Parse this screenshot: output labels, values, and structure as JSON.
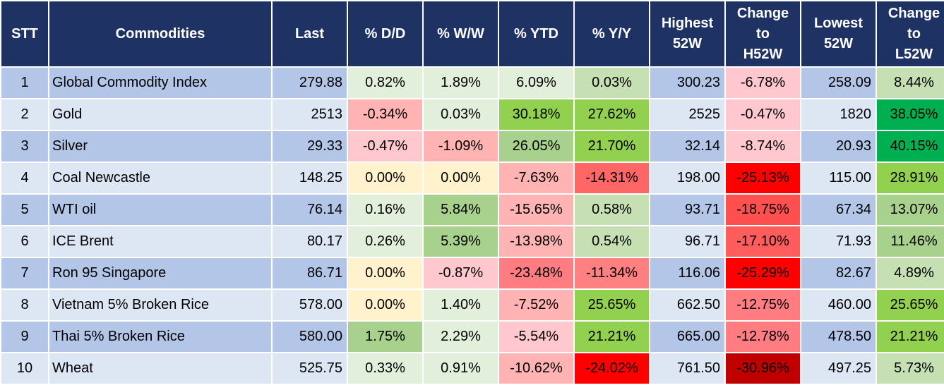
{
  "headers": [
    "STT",
    "Commodities",
    "Last",
    "% D/D",
    "% W/W",
    "% YTD",
    "% Y/Y",
    "Highest\n52W",
    "Change\nto\nH52W",
    "Lowest\n52W",
    "Change\nto\nL52W"
  ],
  "rows": [
    {
      "stt": "1",
      "name": "Global Commodity Index",
      "last": "279.88",
      "dd": "0.82%",
      "ww": "1.89%",
      "ytd": "6.09%",
      "yy": "0.03%",
      "hi": "300.23",
      "chi": "-6.78%",
      "lo": "258.09",
      "clo": "8.44%",
      "colors": {
        "dd": "#e2efda",
        "ww": "#e2efda",
        "ytd": "#e2efda",
        "yy": "#c6e0b4",
        "chi": "#ffc7ce",
        "clo": "#c6e0b4"
      }
    },
    {
      "stt": "2",
      "name": "Gold",
      "last": "2513",
      "dd": "-0.34%",
      "ww": "0.03%",
      "ytd": "30.18%",
      "yy": "27.62%",
      "hi": "2525",
      "chi": "-0.47%",
      "lo": "1820",
      "clo": "38.05%",
      "colors": {
        "dd": "#ffb3b3",
        "ww": "#e2efda",
        "ytd": "#92d050",
        "yy": "#92d050",
        "chi": "#ffc7ce",
        "clo": "#00b050"
      }
    },
    {
      "stt": "3",
      "name": "Silver",
      "last": "29.33",
      "dd": "-0.47%",
      "ww": "-1.09%",
      "ytd": "26.05%",
      "yy": "21.70%",
      "hi": "32.14",
      "chi": "-8.74%",
      "lo": "20.93",
      "clo": "40.15%",
      "colors": {
        "dd": "#ffc7ce",
        "ww": "#ffb3b3",
        "ytd": "#a9d18e",
        "yy": "#92d050",
        "chi": "#ffc7ce",
        "clo": "#00b050"
      }
    },
    {
      "stt": "4",
      "name": "Coal Newcastle",
      "last": "148.25",
      "dd": "0.00%",
      "ww": "0.00%",
      "ytd": "-7.63%",
      "yy": "-14.31%",
      "hi": "198.00",
      "chi": "-25.13%",
      "lo": "115.00",
      "clo": "28.91%",
      "colors": {
        "dd": "#fff2cc",
        "ww": "#fff2cc",
        "ytd": "#ffb3b3",
        "yy": "#ff6666",
        "chi": "#ff0000",
        "clo": "#92d050"
      }
    },
    {
      "stt": "5",
      "name": "WTI oil",
      "last": "76.14",
      "dd": "0.16%",
      "ww": "5.84%",
      "ytd": "-15.65%",
      "yy": "0.58%",
      "hi": "93.71",
      "chi": "-18.75%",
      "lo": "67.34",
      "clo": "13.07%",
      "colors": {
        "dd": "#e2efda",
        "ww": "#a9d18e",
        "ytd": "#ffb3b3",
        "yy": "#c6e0b4",
        "chi": "#ff5050",
        "clo": "#a9d18e"
      }
    },
    {
      "stt": "6",
      "name": "ICE Brent",
      "last": "80.17",
      "dd": "0.26%",
      "ww": "5.39%",
      "ytd": "-13.98%",
      "yy": "0.54%",
      "hi": "96.71",
      "chi": "-17.10%",
      "lo": "71.93",
      "clo": "11.46%",
      "colors": {
        "dd": "#e2efda",
        "ww": "#a9d18e",
        "ytd": "#ffb3b3",
        "yy": "#c6e0b4",
        "chi": "#ff5c5c",
        "clo": "#a9d18e"
      }
    },
    {
      "stt": "7",
      "name": "Ron 95 Singapore",
      "last": "86.71",
      "dd": "0.00%",
      "ww": "-0.87%",
      "ytd": "-23.48%",
      "yy": "-11.34%",
      "hi": "116.06",
      "chi": "-25.29%",
      "lo": "82.67",
      "clo": "4.89%",
      "colors": {
        "dd": "#fff2cc",
        "ww": "#ffc7ce",
        "ytd": "#ff7c80",
        "yy": "#ff8080",
        "chi": "#ff0000",
        "clo": "#c6e0b4"
      }
    },
    {
      "stt": "8",
      "name": "Vietnam 5% Broken Rice",
      "last": "578.00",
      "dd": "0.00%",
      "ww": "1.40%",
      "ytd": "-7.52%",
      "yy": "25.65%",
      "hi": "662.50",
      "chi": "-12.75%",
      "lo": "460.00",
      "clo": "25.65%",
      "colors": {
        "dd": "#fff2cc",
        "ww": "#e2efda",
        "ytd": "#ffb3b3",
        "yy": "#92d050",
        "chi": "#ff7c80",
        "clo": "#92d050"
      }
    },
    {
      "stt": "9",
      "name": "Thai 5% Broken Rice",
      "last": "580.00",
      "dd": "1.75%",
      "ww": "2.29%",
      "ytd": "-5.54%",
      "yy": "21.21%",
      "hi": "665.00",
      "chi": "-12.78%",
      "lo": "478.50",
      "clo": "21.21%",
      "colors": {
        "dd": "#a9d18e",
        "ww": "#e2efda",
        "ytd": "#ffc7ce",
        "yy": "#92d050",
        "chi": "#ff7c80",
        "clo": "#92d050"
      }
    },
    {
      "stt": "10",
      "name": "Wheat",
      "last": "525.75",
      "dd": "0.33%",
      "ww": "0.91%",
      "ytd": "-10.62%",
      "yy": "-24.02%",
      "hi": "761.50",
      "chi": "-30.96%",
      "lo": "497.25",
      "clo": "5.73%",
      "colors": {
        "dd": "#e2efda",
        "ww": "#e2efda",
        "ytd": "#ffb3b3",
        "yy": "#ff0000",
        "chi": "#c00000",
        "clo": "#c6e0b4"
      }
    }
  ]
}
